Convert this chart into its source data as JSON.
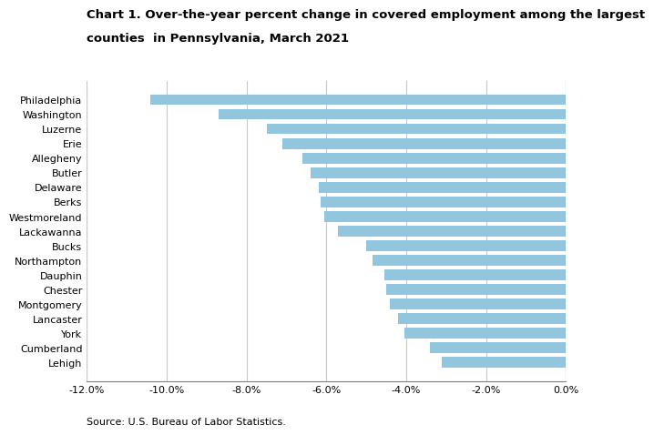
{
  "title_line1": "Chart 1. Over-the-year percent change in covered employment among the largest",
  "title_line2": "counties  in Pennsylvania, March 2021",
  "counties": [
    "Philadelphia",
    "Washington",
    "Luzerne",
    "Erie",
    "Allegheny",
    "Butler",
    "Delaware",
    "Berks",
    "Westmoreland",
    "Lackawanna",
    "Bucks",
    "Northampton",
    "Dauphin",
    "Chester",
    "Montgomery",
    "Lancaster",
    "York",
    "Cumberland",
    "Lehigh"
  ],
  "values": [
    -10.4,
    -8.7,
    -7.5,
    -7.1,
    -6.6,
    -6.4,
    -6.2,
    -6.15,
    -6.05,
    -5.7,
    -5.0,
    -4.85,
    -4.55,
    -4.5,
    -4.4,
    -4.2,
    -4.05,
    -3.4,
    -3.1
  ],
  "bar_color": "#92c5de",
  "bar_edgecolor": "none",
  "xlim": [
    -12.0,
    0.0
  ],
  "xticks": [
    -12.0,
    -10.0,
    -8.0,
    -6.0,
    -4.0,
    -2.0,
    0.0
  ],
  "xtick_labels": [
    "-12.0%",
    "-10.0%",
    "-8.0%",
    "-6.0%",
    "-4.0%",
    "-2.0%",
    "0.0%"
  ],
  "source": "Source: U.S. Bureau of Labor Statistics.",
  "grid_color": "#c8c8c8",
  "title_fontsize": 9.5,
  "tick_fontsize": 8,
  "source_fontsize": 8,
  "bar_height": 0.72
}
